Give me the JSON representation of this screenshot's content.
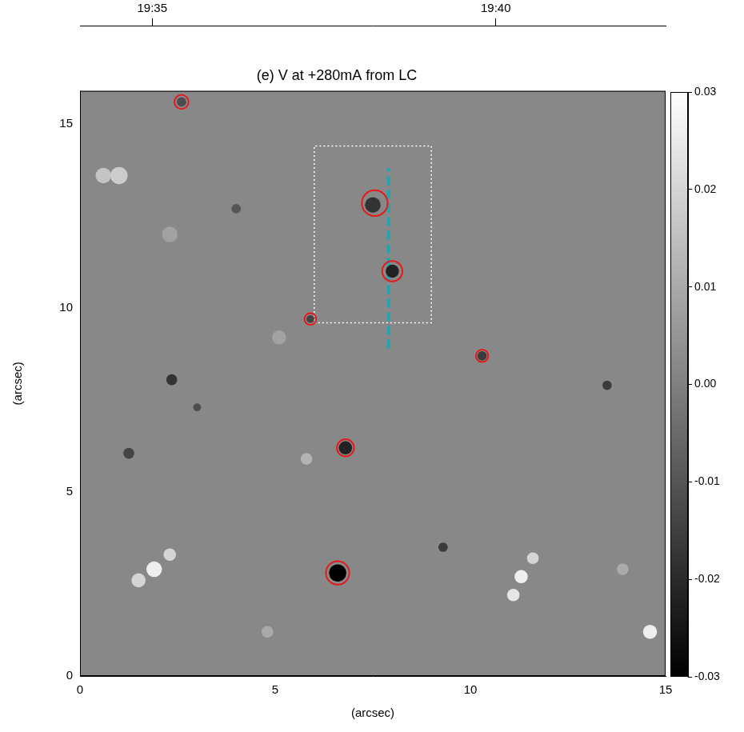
{
  "chart_data": {
    "type": "heatmap",
    "title": "(e) V at +280mA from LC",
    "x_label": "(arcsec)",
    "y_label": "(arcsec)",
    "xlim": [
      0,
      15
    ],
    "xticks": [
      0,
      5,
      10,
      15
    ],
    "ylim": [
      0,
      15.9
    ],
    "yticks": [
      0,
      5,
      10,
      15
    ],
    "grid": false,
    "background_value": 0.002,
    "features": [
      {
        "x": 6.6,
        "y": 2.8,
        "size": 0.22,
        "value": -0.03
      },
      {
        "x": 6.8,
        "y": 6.2,
        "size": 0.17,
        "value": -0.022
      },
      {
        "x": 7.5,
        "y": 12.8,
        "size": 0.2,
        "value": -0.018
      },
      {
        "x": 8.0,
        "y": 11.0,
        "size": 0.17,
        "value": -0.022
      },
      {
        "x": 10.3,
        "y": 8.7,
        "size": 0.12,
        "value": -0.016
      },
      {
        "x": 5.9,
        "y": 9.7,
        "size": 0.1,
        "value": -0.014
      },
      {
        "x": 2.6,
        "y": 15.6,
        "size": 0.12,
        "value": -0.012
      },
      {
        "x": 2.35,
        "y": 8.05,
        "size": 0.14,
        "value": -0.018
      },
      {
        "x": 1.25,
        "y": 6.05,
        "size": 0.14,
        "value": -0.014
      },
      {
        "x": 9.3,
        "y": 3.5,
        "size": 0.12,
        "value": -0.016
      },
      {
        "x": 13.5,
        "y": 7.9,
        "size": 0.12,
        "value": -0.016
      },
      {
        "x": 3.0,
        "y": 7.3,
        "size": 0.1,
        "value": -0.012
      },
      {
        "x": 4.0,
        "y": 12.7,
        "size": 0.12,
        "value": -0.01
      },
      {
        "x": 0.6,
        "y": 13.6,
        "size": 0.2,
        "value": 0.016
      },
      {
        "x": 1.0,
        "y": 13.6,
        "size": 0.22,
        "value": 0.018
      },
      {
        "x": 1.5,
        "y": 2.6,
        "size": 0.18,
        "value": 0.02
      },
      {
        "x": 1.9,
        "y": 2.9,
        "size": 0.2,
        "value": 0.026
      },
      {
        "x": 2.3,
        "y": 3.3,
        "size": 0.16,
        "value": 0.02
      },
      {
        "x": 11.1,
        "y": 2.2,
        "size": 0.16,
        "value": 0.024
      },
      {
        "x": 11.3,
        "y": 2.7,
        "size": 0.17,
        "value": 0.026
      },
      {
        "x": 11.6,
        "y": 3.2,
        "size": 0.15,
        "value": 0.02
      },
      {
        "x": 14.6,
        "y": 1.2,
        "size": 0.18,
        "value": 0.026
      },
      {
        "x": 5.8,
        "y": 5.9,
        "size": 0.15,
        "value": 0.012
      },
      {
        "x": 4.8,
        "y": 1.2,
        "size": 0.15,
        "value": 0.01
      },
      {
        "x": 2.3,
        "y": 12.0,
        "size": 0.2,
        "value": 0.008
      },
      {
        "x": 5.1,
        "y": 9.2,
        "size": 0.18,
        "value": 0.008
      },
      {
        "x": 13.9,
        "y": 2.9,
        "size": 0.15,
        "value": 0.01
      }
    ],
    "contours": {
      "color": "#e41a1c",
      "items": [
        {
          "x": 6.6,
          "y": 2.8,
          "size": 0.3
        },
        {
          "x": 6.8,
          "y": 6.2,
          "size": 0.22
        },
        {
          "x": 7.55,
          "y": 12.85,
          "size": 0.33
        },
        {
          "x": 8.0,
          "y": 11.0,
          "size": 0.26
        },
        {
          "x": 10.3,
          "y": 8.7,
          "size": 0.16
        },
        {
          "x": 5.9,
          "y": 9.7,
          "size": 0.15
        },
        {
          "x": 2.6,
          "y": 15.6,
          "size": 0.18
        }
      ]
    },
    "box": {
      "x": [
        6.0,
        9.0
      ],
      "y": [
        9.6,
        14.4
      ],
      "color": "#ffffff",
      "line_style": "dotted"
    },
    "cut": {
      "x": [
        7.9,
        7.9
      ],
      "y": [
        8.9,
        13.8
      ],
      "color": "#20a5ad",
      "line_style": "dashed"
    },
    "colorbar": {
      "lim": [
        -0.03,
        0.03
      ],
      "ticks": [
        -0.03,
        -0.02,
        -0.01,
        {
          "value": 0,
          "label": "0.00"
        },
        0.01,
        0.02,
        0.03
      ]
    },
    "time_axis": {
      "xlim": [
        33.95,
        42.47
      ],
      "xticks": [
        {
          "value": 35,
          "label": "19:35"
        },
        {
          "value": 40,
          "label": "19:40"
        }
      ]
    }
  }
}
